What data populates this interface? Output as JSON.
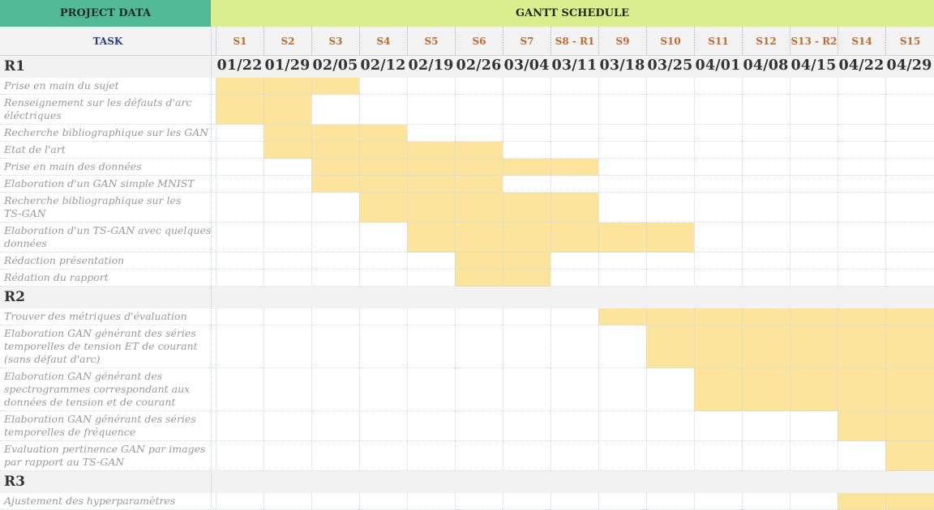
{
  "header": {
    "project_data": "PROJECT DATA",
    "gantt_schedule": "GANTT SCHEDULE",
    "task_label": "TASK"
  },
  "weeks": [
    "S1",
    "S2",
    "S3",
    "S4",
    "S5",
    "S6",
    "S7",
    "S8 - R1",
    "S9",
    "S10",
    "S11",
    "S12",
    "S13 - R2",
    "S14",
    "S15"
  ],
  "dates": [
    "01/22",
    "01/29",
    "02/05",
    "02/12",
    "02/19",
    "02/26",
    "03/04",
    "03/11",
    "03/18",
    "03/25",
    "04/01",
    "04/08",
    "04/15",
    "04/22",
    "04/29"
  ],
  "colors": {
    "bar": "#fde49d",
    "project_data": "#52b996",
    "gantt_schedule": "#d9ee8f",
    "week_label": "#c06a2f",
    "task_header": "#2b3f86"
  },
  "sections": [
    {
      "label": "R1",
      "tasks": [
        {
          "name": "Prise en main du sujet",
          "bars": [
            [
              1,
              3
            ]
          ]
        },
        {
          "name": "Renseignement sur les défauts d'arc\néléctriques",
          "bars": [
            [
              1,
              2
            ]
          ]
        },
        {
          "name": "Recherche bibliographique sur les GAN",
          "bars": [
            [
              2,
              4
            ]
          ]
        },
        {
          "name": "Etat de l'art",
          "bars": [
            [
              2,
              6
            ]
          ]
        },
        {
          "name": "Prise en main des données",
          "bars": [
            [
              3,
              8
            ]
          ]
        },
        {
          "name": "Elaboration d'un GAN simple MNIST",
          "bars": [
            [
              3,
              6
            ]
          ]
        },
        {
          "name": "Recherche bibliographique sur les\nTS-GAN",
          "bars": [
            [
              4,
              8
            ]
          ]
        },
        {
          "name": "Elaboration d'un TS-GAN avec quelques\ndonnées",
          "bars": [
            [
              5,
              10
            ]
          ]
        },
        {
          "name": "Rédaction présentation",
          "bars": [
            [
              6,
              7
            ]
          ]
        },
        {
          "name": "Rédation du rapport",
          "bars": [
            [
              6,
              7
            ]
          ]
        }
      ]
    },
    {
      "label": "R2",
      "tasks": [
        {
          "name": "Trouver des métriques d'évaluation",
          "bars": [
            [
              9,
              15
            ]
          ]
        },
        {
          "name": "Elaboration GAN générant des séries\ntemporelles de tension ET de courant\n(sans défaut d'arc)",
          "bars": [
            [
              10,
              15
            ]
          ]
        },
        {
          "name": "Elaboration GAN générant des\nspectrogrammes correspondant aux\ndonnées de tension et de courant",
          "bars": [
            [
              11,
              15
            ]
          ]
        },
        {
          "name": "Elaboration GAN générant des séries\ntemporelles de fréquence",
          "bars": [
            [
              14,
              15
            ]
          ]
        },
        {
          "name": "Evaluation pertinence GAN par images\npar rapport au TS-GAN",
          "bars": [
            [
              15,
              15
            ]
          ]
        }
      ]
    },
    {
      "label": "R3",
      "tasks": [
        {
          "name": "Ajustement des hyperparamètres",
          "bars": [
            [
              14,
              15
            ]
          ]
        }
      ]
    }
  ]
}
